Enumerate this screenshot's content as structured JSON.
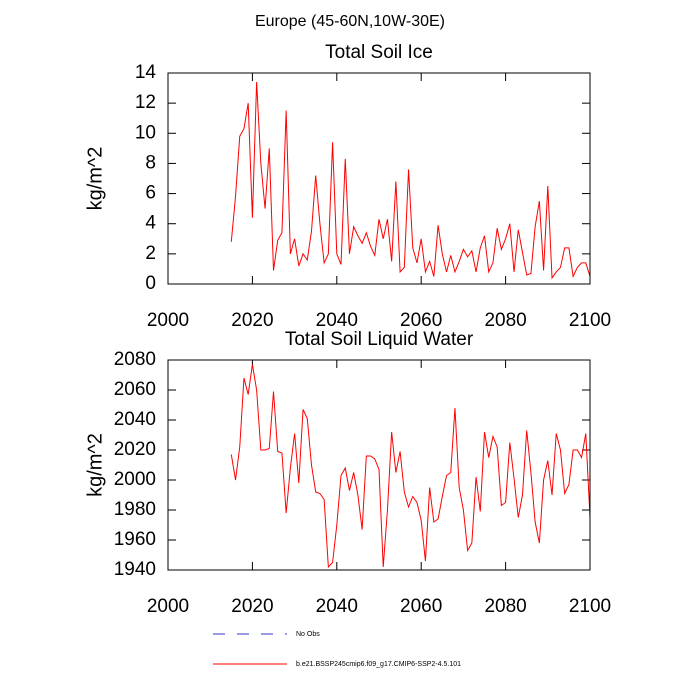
{
  "title": "Europe (45-60N,10W-30E)",
  "legend": [
    {
      "name": "No Obs",
      "color": "#3333cc",
      "dashed": true
    },
    {
      "name": "b.e21.BSSP245cmip6.f09_g17.CMIP6-SSP2-4.5.101",
      "color": "#ff0000",
      "dashed": false
    }
  ],
  "chart_data": [
    {
      "type": "line",
      "title": "Total Soil Ice",
      "ylabel": "kg/m^2",
      "x": [
        2015,
        2016,
        2017,
        2018,
        2019,
        2020,
        2021,
        2022,
        2023,
        2024,
        2025,
        2026,
        2027,
        2028,
        2029,
        2030,
        2031,
        2032,
        2033,
        2034,
        2035,
        2036,
        2037,
        2038,
        2039,
        2040,
        2041,
        2042,
        2043,
        2044,
        2045,
        2046,
        2047,
        2048,
        2049,
        2050,
        2051,
        2052,
        2053,
        2054,
        2055,
        2056,
        2057,
        2058,
        2059,
        2060,
        2061,
        2062,
        2063,
        2064,
        2065,
        2066,
        2067,
        2068,
        2069,
        2070,
        2071,
        2072,
        2073,
        2074,
        2075,
        2076,
        2077,
        2078,
        2079,
        2080,
        2081,
        2082,
        2083,
        2084,
        2085,
        2086,
        2087,
        2088,
        2089,
        2090,
        2091,
        2092,
        2093,
        2094,
        2095,
        2096,
        2097,
        2098,
        2099,
        2100
      ],
      "series": [
        {
          "color": "#ff0000",
          "values": [
            2.8,
            5.8,
            9.8,
            10.3,
            12.0,
            4.4,
            13.4,
            8.0,
            5.0,
            9.0,
            0.9,
            2.9,
            3.4,
            11.5,
            2.0,
            3.0,
            1.2,
            2.0,
            1.6,
            3.5,
            7.2,
            4.0,
            1.4,
            2.0,
            9.4,
            2.0,
            1.3,
            8.3,
            2.0,
            3.8,
            3.2,
            2.7,
            3.4,
            2.5,
            1.9,
            4.3,
            3.0,
            4.3,
            1.5,
            6.8,
            0.8,
            1.1,
            7.6,
            2.4,
            1.4,
            3.0,
            0.8,
            1.5,
            0.5,
            3.9,
            2.0,
            0.8,
            1.9,
            0.8,
            1.5,
            2.3,
            1.8,
            2.2,
            0.8,
            2.4,
            3.2,
            0.8,
            1.4,
            3.7,
            2.3,
            3.0,
            4.0,
            0.8,
            3.6,
            2.1,
            0.6,
            0.7,
            3.8,
            5.5,
            0.9,
            6.5,
            0.4,
            0.8,
            1.1,
            2.4,
            2.4,
            0.5,
            1.1,
            1.4,
            1.4,
            0.5
          ]
        }
      ],
      "xlim": [
        2000,
        2100
      ],
      "xticks": [
        2000,
        2020,
        2040,
        2060,
        2080,
        2100
      ],
      "ylim": [
        0,
        14
      ],
      "yticks": [
        0,
        2,
        4,
        6,
        8,
        10,
        12,
        14
      ]
    },
    {
      "type": "line",
      "title": "Total Soil Liquid Water",
      "ylabel": "kg/m^2",
      "x": [
        2015,
        2016,
        2017,
        2018,
        2019,
        2020,
        2021,
        2022,
        2023,
        2024,
        2025,
        2026,
        2027,
        2028,
        2029,
        2030,
        2031,
        2032,
        2033,
        2034,
        2035,
        2036,
        2037,
        2038,
        2039,
        2040,
        2041,
        2042,
        2043,
        2044,
        2045,
        2046,
        2047,
        2048,
        2049,
        2050,
        2051,
        2052,
        2053,
        2054,
        2055,
        2056,
        2057,
        2058,
        2059,
        2060,
        2061,
        2062,
        2063,
        2064,
        2065,
        2066,
        2067,
        2068,
        2069,
        2070,
        2071,
        2072,
        2073,
        2074,
        2075,
        2076,
        2077,
        2078,
        2079,
        2080,
        2081,
        2082,
        2083,
        2084,
        2085,
        2086,
        2087,
        2088,
        2089,
        2090,
        2091,
        2092,
        2093,
        2094,
        2095,
        2096,
        2097,
        2098,
        2099,
        2100
      ],
      "series": [
        {
          "color": "#ff0000",
          "values": [
            2017,
            2000,
            2022,
            2068,
            2057,
            2077,
            2060,
            2020,
            2020,
            2021,
            2059,
            2019,
            2018,
            1978,
            2008,
            2031,
            1998,
            2047,
            2041,
            2010,
            1992,
            1991,
            1987,
            1942,
            1945,
            1970,
            2003,
            2008,
            1993,
            2005,
            1990,
            1967,
            2016,
            2016,
            2014,
            2007,
            1942,
            1980,
            2032,
            2005,
            2019,
            1992,
            1982,
            1989,
            1985,
            1973,
            1946,
            1995,
            1972,
            1974,
            1989,
            2003,
            2005,
            2048,
            1995,
            1980,
            1953,
            1958,
            2002,
            1979,
            2032,
            2015,
            2029,
            2022,
            1983,
            1985,
            2025,
            2001,
            1975,
            1990,
            2033,
            2005,
            1972,
            1958,
            2000,
            2013,
            1990,
            2031,
            2020,
            1991,
            1997,
            2020,
            2020,
            2015,
            2031,
            1975
          ]
        }
      ],
      "xlim": [
        2000,
        2100
      ],
      "xticks": [
        2000,
        2020,
        2040,
        2060,
        2080,
        2100
      ],
      "ylim": [
        1940,
        2080
      ],
      "yticks": [
        1940,
        1960,
        1980,
        2000,
        2020,
        2040,
        2060,
        2080
      ]
    }
  ]
}
